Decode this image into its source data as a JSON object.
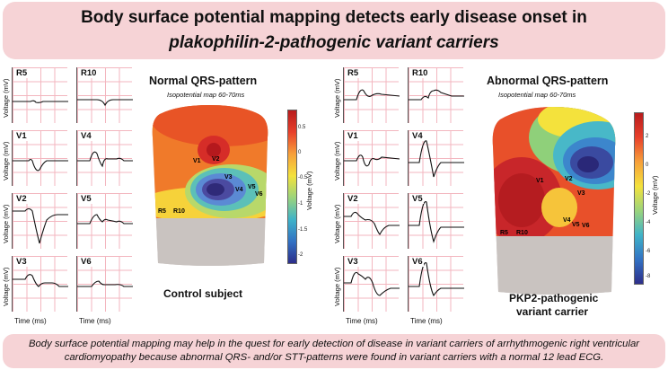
{
  "header": {
    "title_line1": "Body surface potential mapping detects early disease onset in",
    "title_line2": "plakophilin-2-pathogenic variant carriers"
  },
  "footer": {
    "text": "Body surface potential mapping may help in the quest for early detection of disease in variant carriers of arrhythmogenic right ventricular cardiomyopathy because abnormal QRS- and/or STT-patterns were found in variant carriers with a normal 12 lead ECG."
  },
  "left_panel": {
    "map_title": "Normal QRS-pattern",
    "map_subtitle": "Isopotential map 60-70ms",
    "subject": "Control subject",
    "leads": [
      "R5",
      "R10",
      "V1",
      "V4",
      "V2",
      "V5",
      "V3",
      "V6"
    ],
    "voltage_label": "Voltage (mV)",
    "time_label": "Time  (ms)",
    "colorbar_title": "Voltage (mV)",
    "colorbar_ticks": [
      "0.5",
      "0",
      "-0.5",
      "-1",
      "-1.5",
      "-2"
    ],
    "electrodes": [
      "V1",
      "V2",
      "V3",
      "V4",
      "V5",
      "V6",
      "R5",
      "R10"
    ]
  },
  "right_panel": {
    "map_title": "Abnormal QRS-pattern",
    "map_subtitle": "Isopotential map 60-70ms",
    "subject_line1": "PKP2-pathogenic",
    "subject_line2": "variant carrier",
    "leads": [
      "R5",
      "R10",
      "V1",
      "V4",
      "V2",
      "V5",
      "V3",
      "V6"
    ],
    "voltage_label": "Voltage (mV)",
    "time_label": "Time  (ms)",
    "colorbar_title": "Voltage (mV)",
    "colorbar_ticks": [
      "2",
      "0",
      "-2",
      "-4",
      "-6",
      "-8"
    ],
    "electrodes": [
      "V1",
      "V2",
      "V3",
      "V4",
      "V5",
      "V6",
      "R5",
      "R10"
    ]
  },
  "colors": {
    "banner": "#f6d3d6",
    "grid": "#f3b6bf",
    "torso_base": "#c9c3c0"
  }
}
